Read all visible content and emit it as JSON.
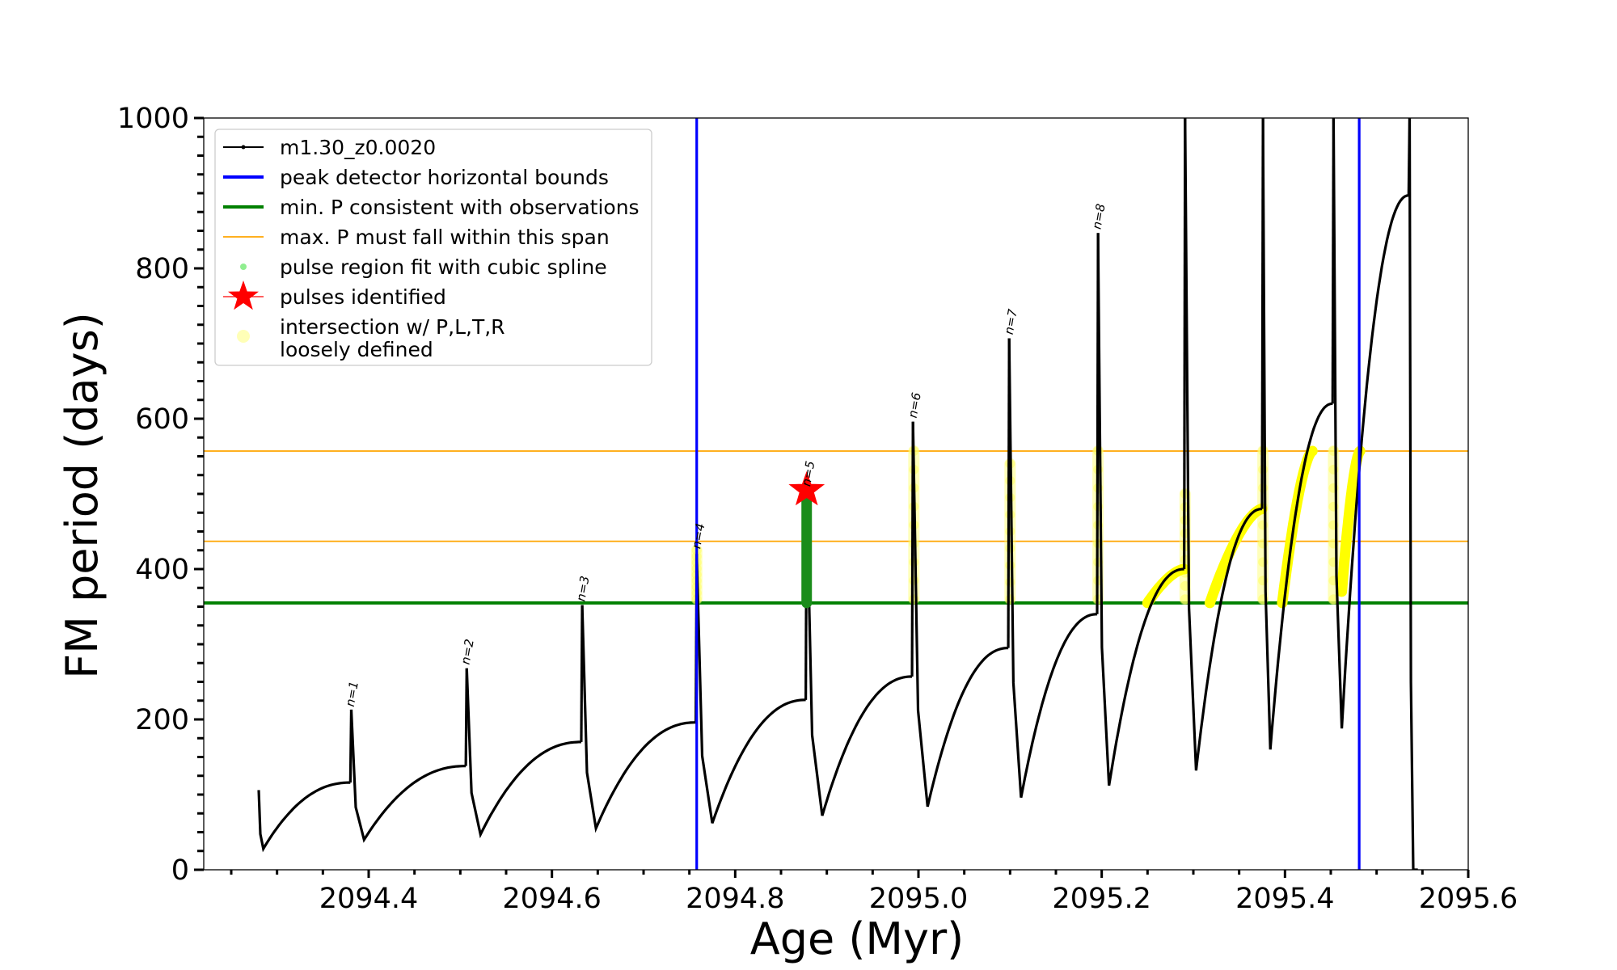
{
  "chart_data": {
    "type": "line",
    "title": "",
    "xlabel": "Age (Myr)",
    "ylabel": "FM period (days)",
    "xlim": [
      2094.22,
      2095.6
    ],
    "ylim": [
      0,
      1000
    ],
    "xticks": [
      2094.4,
      2094.6,
      2094.8,
      2095.0,
      2095.2,
      2095.4,
      2095.6
    ],
    "xtick_labels": [
      "2094.4",
      "2094.6",
      "2094.8",
      "2095.0",
      "2095.2",
      "2095.4",
      "2095.6"
    ],
    "yticks": [
      0,
      200,
      400,
      600,
      800,
      1000
    ],
    "ytick_labels": [
      "0",
      "200",
      "400",
      "600",
      "800",
      "1000"
    ],
    "grid": false,
    "legend_position": "top-left",
    "series": [
      {
        "name": "m1.30_z0.0020",
        "color": "#000000",
        "style": "line-with-dots",
        "cycles": [
          {
            "x_start": 2094.28,
            "x_peak": 2094.38,
            "start": 106,
            "min": 28,
            "min_x": 2094.285,
            "end": 116
          },
          {
            "x_start": 2094.381,
            "x_peak": 2094.506,
            "start": 213,
            "min": 40,
            "min_x": 2094.395,
            "end": 138
          },
          {
            "x_start": 2094.507,
            "x_peak": 2094.632,
            "start": 268,
            "min": 47,
            "min_x": 2094.522,
            "end": 170
          },
          {
            "x_start": 2094.633,
            "x_peak": 2094.757,
            "start": 352,
            "min": 55,
            "min_x": 2094.648,
            "end": 196
          },
          {
            "x_start": 2094.758,
            "x_peak": 2094.877,
            "start": 420,
            "min": 62,
            "min_x": 2094.775,
            "end": 226
          },
          {
            "x_start": 2094.878,
            "x_peak": 2094.993,
            "start": 500,
            "min": 72,
            "min_x": 2094.895,
            "end": 257
          },
          {
            "x_start": 2094.994,
            "x_peak": 2095.098,
            "start": 596,
            "min": 84,
            "min_x": 2095.01,
            "end": 295
          },
          {
            "x_start": 2095.099,
            "x_peak": 2095.195,
            "start": 707,
            "min": 96,
            "min_x": 2095.112,
            "end": 340
          },
          {
            "x_start": 2095.196,
            "x_peak": 2095.29,
            "start": 847,
            "min": 112,
            "min_x": 2095.208,
            "end": 400
          },
          {
            "x_start": 2095.291,
            "x_peak": 2095.375,
            "start": 1000,
            "min": 132,
            "min_x": 2095.303,
            "end": 480
          },
          {
            "x_start": 2095.376,
            "x_peak": 2095.452,
            "start": 1000,
            "min": 160,
            "min_x": 2095.384,
            "end": 620
          },
          {
            "x_start": 2095.453,
            "x_peak": 2095.535,
            "start": 1000,
            "min": 188,
            "min_x": 2095.462,
            "end": 897
          },
          {
            "x_start": 2095.536,
            "x_peak": 2095.545,
            "start": 1000,
            "min": 0,
            "min_x": 2095.54,
            "end": 0
          }
        ]
      },
      {
        "name": "peak detector horizontal bounds",
        "type": "vline",
        "color": "#0000ff",
        "x": [
          2094.758,
          2095.481
        ]
      },
      {
        "name": "min. P consistent with observations",
        "type": "hline",
        "color": "#008000",
        "y": 355
      },
      {
        "name": "max. P must fall within this span",
        "type": "hline",
        "color": "#ffa500",
        "y": [
          557,
          437
        ]
      },
      {
        "name": "pulse region fit with cubic spline",
        "type": "scatter",
        "color": "#90ee90",
        "segments": [
          {
            "x": 2094.878,
            "y_from": 355,
            "y_to": 500
          }
        ]
      },
      {
        "name": "pulses identified",
        "type": "marker",
        "color": "#ff0000",
        "marker": "star",
        "points": [
          {
            "x": 2094.878,
            "y": 505
          }
        ]
      },
      {
        "name": "intersection w/ P,L,T,R\nloosely defined",
        "type": "scatter",
        "color": "#ffff00",
        "segments": [
          {
            "x": 2094.758,
            "y_from": 360,
            "y_to": 425
          },
          {
            "x": 2094.995,
            "y_from": 360,
            "y_to": 557
          },
          {
            "x": 2095.1,
            "y_from": 360,
            "y_to": 540
          },
          {
            "x": 2095.196,
            "y_from": 360,
            "y_to": 557
          },
          {
            "x": 2095.291,
            "y_from": 360,
            "y_to": 500
          },
          {
            "x": 2095.376,
            "y_from": 360,
            "y_to": 557
          },
          {
            "x": 2095.453,
            "y_from": 360,
            "y_to": 557
          }
        ],
        "arcs": [
          {
            "x_from": 2095.25,
            "x_to": 2095.29,
            "y_from": 355,
            "y_to": 400
          },
          {
            "x_from": 2095.318,
            "x_to": 2095.375,
            "y_from": 355,
            "y_to": 480
          },
          {
            "x_from": 2095.397,
            "x_to": 2095.43,
            "y_from": 355,
            "y_to": 557
          },
          {
            "x_from": 2095.462,
            "x_to": 2095.482,
            "y_from": 370,
            "y_to": 557
          }
        ]
      },
      {
        "name": "",
        "type": "labels",
        "items": [
          {
            "text": "n=1",
            "x": 2094.382,
            "y": 212
          },
          {
            "text": "n=2",
            "x": 2094.508,
            "y": 268
          },
          {
            "text": "n=3",
            "x": 2094.634,
            "y": 352
          },
          {
            "text": "n=4",
            "x": 2094.76,
            "y": 422
          },
          {
            "text": "n=5",
            "x": 2094.88,
            "y": 505
          },
          {
            "text": "n=6",
            "x": 2094.996,
            "y": 596
          },
          {
            "text": "n=7",
            "x": 2095.101,
            "y": 707
          },
          {
            "text": "n=8",
            "x": 2095.197,
            "y": 847
          }
        ]
      }
    ]
  },
  "legend": {
    "items": [
      {
        "label": "m1.30_z0.0020",
        "symbol": "line-dot",
        "color": "#000000"
      },
      {
        "label": "peak detector horizontal bounds",
        "symbol": "line",
        "color": "#0000ff"
      },
      {
        "label": "min. P consistent with observations",
        "symbol": "line",
        "color": "#008000"
      },
      {
        "label": "max. P must fall within this span",
        "symbol": "thin-line",
        "color": "#ffa500"
      },
      {
        "label": "pulse region fit with cubic spline",
        "symbol": "dot",
        "color": "#90ee90"
      },
      {
        "label": "pulses identified",
        "symbol": "star",
        "color": "#ff0000"
      },
      {
        "label": "intersection w/ P,L,T,R",
        "label2": "loosely defined",
        "symbol": "circle",
        "color": "#ffff99"
      }
    ]
  }
}
